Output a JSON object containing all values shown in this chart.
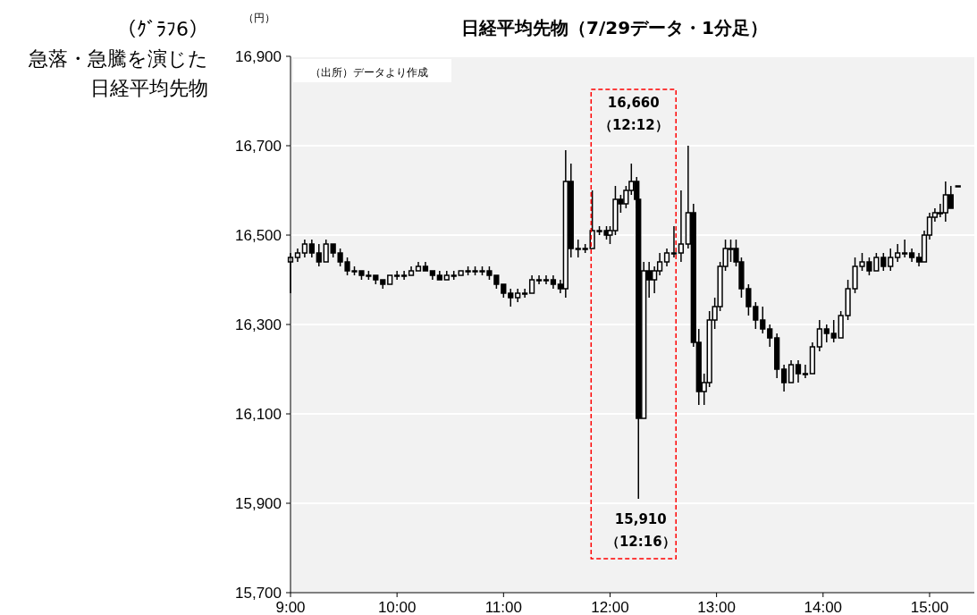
{
  "chart_data": {
    "type": "candlestick",
    "title": "日経平均先物（7/29データ・1分足）",
    "subtitle": "急落・急騰を演じた日経平均先物",
    "ylabel": "（円）",
    "annotations": [
      "（ｸﾞﾗﾌ6）",
      "（出所）データより作成",
      {
        "text": "16,660\n（12:12）",
        "x": 12.2,
        "y": 16660
      },
      {
        "text": "15,910\n（12:16）",
        "x": 12.2667,
        "y": 15910
      }
    ],
    "color": "#000000",
    "x": [
      9.0,
      9.0667,
      9.1333,
      9.2,
      9.2667,
      9.3333,
      9.4,
      9.4667,
      9.5333,
      9.6,
      9.6667,
      9.7333,
      9.8,
      9.8667,
      9.9333,
      10.0,
      10.0667,
      10.1333,
      10.2,
      10.2667,
      10.3333,
      10.4,
      10.4667,
      10.5333,
      10.6,
      10.6667,
      10.7333,
      10.8,
      10.8667,
      10.9333,
      11.0,
      11.0667,
      11.1333,
      11.2,
      11.2667,
      11.3333,
      11.4,
      11.4667,
      11.5333,
      11.5833,
      11.6333,
      11.7,
      11.7667,
      11.8333,
      11.9,
      11.9667,
      12.0,
      12.05,
      12.1,
      12.15,
      12.2,
      12.25,
      12.2667,
      12.3167,
      12.3667,
      12.4167,
      12.4667,
      12.5333,
      12.6,
      12.6667,
      12.7333,
      12.7833,
      12.8333,
      12.8833,
      12.9333,
      12.9833,
      13.0333,
      13.0833,
      13.1333,
      13.1833,
      13.2333,
      13.3,
      13.3667,
      13.4333,
      13.5,
      13.5667,
      13.6333,
      13.7,
      13.7667,
      13.8333,
      13.9,
      13.9667,
      14.0333,
      14.1,
      14.1667,
      14.2333,
      14.3,
      14.3667,
      14.4333,
      14.5,
      14.5667,
      14.6333,
      14.7,
      14.7667,
      14.8333,
      14.9,
      14.95,
      15.0,
      15.05,
      15.1,
      15.15,
      15.2,
      15.2667
    ],
    "ohlc": [
      [
        16440,
        16460,
        16370,
        16450
      ],
      [
        16450,
        16470,
        16440,
        16460
      ],
      [
        16460,
        16490,
        16450,
        16480
      ],
      [
        16480,
        16490,
        16450,
        16460
      ],
      [
        16460,
        16480,
        16430,
        16440
      ],
      [
        16440,
        16490,
        16440,
        16480
      ],
      [
        16480,
        16480,
        16450,
        16460
      ],
      [
        16460,
        16470,
        16430,
        16440
      ],
      [
        16440,
        16450,
        16410,
        16420
      ],
      [
        16420,
        16430,
        16410,
        16420
      ],
      [
        16420,
        16420,
        16400,
        16410
      ],
      [
        16410,
        16420,
        16400,
        16410
      ],
      [
        16410,
        16410,
        16390,
        16400
      ],
      [
        16400,
        16400,
        16380,
        16390
      ],
      [
        16390,
        16410,
        16390,
        16410
      ],
      [
        16410,
        16420,
        16400,
        16410
      ],
      [
        16410,
        16420,
        16400,
        16410
      ],
      [
        16410,
        16430,
        16410,
        16420
      ],
      [
        16420,
        16440,
        16420,
        16430
      ],
      [
        16430,
        16440,
        16420,
        16420
      ],
      [
        16420,
        16420,
        16400,
        16410
      ],
      [
        16410,
        16420,
        16400,
        16400
      ],
      [
        16400,
        16420,
        16400,
        16410
      ],
      [
        16410,
        16420,
        16400,
        16410
      ],
      [
        16410,
        16420,
        16410,
        16420
      ],
      [
        16420,
        16430,
        16410,
        16420
      ],
      [
        16420,
        16430,
        16410,
        16420
      ],
      [
        16420,
        16430,
        16410,
        16420
      ],
      [
        16420,
        16430,
        16400,
        16410
      ],
      [
        16410,
        16410,
        16380,
        16390
      ],
      [
        16390,
        16390,
        16360,
        16370
      ],
      [
        16370,
        16380,
        16340,
        16360
      ],
      [
        16360,
        16380,
        16350,
        16370
      ],
      [
        16370,
        16380,
        16360,
        16370
      ],
      [
        16370,
        16410,
        16370,
        16400
      ],
      [
        16400,
        16410,
        16390,
        16400
      ],
      [
        16400,
        16410,
        16390,
        16400
      ],
      [
        16400,
        16410,
        16380,
        16390
      ],
      [
        16390,
        16400,
        16370,
        16380
      ],
      [
        16380,
        16690,
        16360,
        16620
      ],
      [
        16620,
        16660,
        16450,
        16470
      ],
      [
        16470,
        16490,
        16450,
        16470
      ],
      [
        16470,
        16480,
        16460,
        16470
      ],
      [
        16470,
        16600,
        16470,
        16510
      ],
      [
        16510,
        16520,
        16500,
        16510
      ],
      [
        16510,
        16520,
        16490,
        16500
      ],
      [
        16500,
        16520,
        16480,
        16510
      ],
      [
        16510,
        16610,
        16500,
        16580
      ],
      [
        16580,
        16590,
        16550,
        16570
      ],
      [
        16570,
        16610,
        16560,
        16600
      ],
      [
        16600,
        16660,
        16590,
        16620
      ],
      [
        16620,
        16630,
        16560,
        16580
      ],
      [
        16580,
        16590,
        15910,
        16090
      ],
      [
        16090,
        16440,
        16090,
        16420
      ],
      [
        16420,
        16440,
        16360,
        16400
      ],
      [
        16400,
        16430,
        16370,
        16420
      ],
      [
        16420,
        16460,
        16410,
        16440
      ],
      [
        16440,
        16470,
        16430,
        16460
      ],
      [
        16460,
        16520,
        16450,
        16460
      ],
      [
        16460,
        16600,
        16440,
        16480
      ],
      [
        16480,
        16700,
        16470,
        16550
      ],
      [
        16550,
        16570,
        16250,
        16260
      ],
      [
        16260,
        16290,
        16120,
        16150
      ],
      [
        16150,
        16190,
        16120,
        16170
      ],
      [
        16170,
        16330,
        16160,
        16310
      ],
      [
        16310,
        16360,
        16290,
        16340
      ],
      [
        16340,
        16440,
        16330,
        16430
      ],
      [
        16430,
        16490,
        16420,
        16470
      ],
      [
        16470,
        16490,
        16440,
        16470
      ],
      [
        16470,
        16490,
        16430,
        16440
      ],
      [
        16440,
        16450,
        16360,
        16380
      ],
      [
        16380,
        16390,
        16320,
        16340
      ],
      [
        16340,
        16350,
        16290,
        16310
      ],
      [
        16310,
        16340,
        16280,
        16290
      ],
      [
        16290,
        16300,
        16250,
        16270
      ],
      [
        16270,
        16280,
        16180,
        16200
      ],
      [
        16200,
        16210,
        16150,
        16170
      ],
      [
        16170,
        16220,
        16170,
        16210
      ],
      [
        16210,
        16220,
        16170,
        16190
      ],
      [
        16190,
        16210,
        16180,
        16190
      ],
      [
        16190,
        16260,
        16190,
        16250
      ],
      [
        16250,
        16310,
        16240,
        16290
      ],
      [
        16290,
        16300,
        16260,
        16280
      ],
      [
        16280,
        16310,
        16260,
        16270
      ],
      [
        16270,
        16330,
        16270,
        16320
      ],
      [
        16320,
        16400,
        16310,
        16380
      ],
      [
        16380,
        16450,
        16370,
        16430
      ],
      [
        16430,
        16460,
        16420,
        16440
      ],
      [
        16440,
        16450,
        16410,
        16420
      ],
      [
        16420,
        16460,
        16420,
        16450
      ],
      [
        16450,
        16460,
        16420,
        16430
      ],
      [
        16430,
        16470,
        16420,
        16450
      ],
      [
        16450,
        16480,
        16440,
        16460
      ],
      [
        16460,
        16490,
        16450,
        16460
      ],
      [
        16460,
        16470,
        16440,
        16450
      ],
      [
        16450,
        16460,
        16430,
        16440
      ],
      [
        16440,
        16510,
        16440,
        16500
      ],
      [
        16500,
        16550,
        16490,
        16540
      ],
      [
        16540,
        16560,
        16530,
        16550
      ],
      [
        16550,
        16570,
        16540,
        16550
      ],
      [
        16550,
        16620,
        16530,
        16590
      ],
      [
        16590,
        16610,
        16560,
        16560
      ],
      [
        16610,
        16610,
        16610,
        16610
      ]
    ],
    "xlim": [
      9,
      15.42
    ],
    "ylim": [
      15700,
      16900
    ],
    "xticks": [
      {
        "value": 9,
        "label": "9:00"
      },
      {
        "value": 10,
        "label": "10:00"
      },
      {
        "value": 11,
        "label": "11:00"
      },
      {
        "value": 12,
        "label": "12:00"
      },
      {
        "value": 13,
        "label": "13:00"
      },
      {
        "value": 14,
        "label": "14:00"
      },
      {
        "value": 15,
        "label": "15:00"
      }
    ],
    "yticks": [
      {
        "value": 15700,
        "label": "15,700"
      },
      {
        "value": 15900,
        "label": "15,900"
      },
      {
        "value": 16100,
        "label": "16,100"
      },
      {
        "value": 16300,
        "label": "16,300"
      },
      {
        "value": 16500,
        "label": "16,500"
      },
      {
        "value": 16700,
        "label": "16,700"
      },
      {
        "value": 16900,
        "label": "16,900"
      }
    ],
    "grid": "y"
  }
}
